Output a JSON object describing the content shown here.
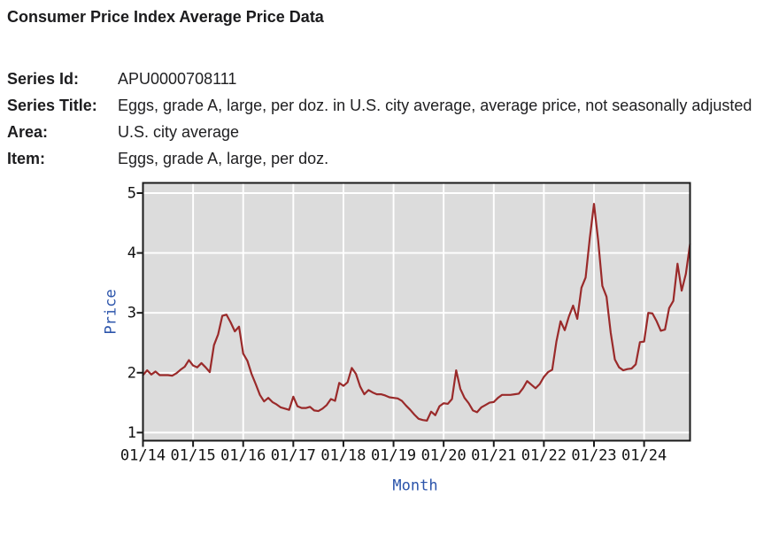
{
  "header": {
    "title": "Consumer Price Index Average Price Data"
  },
  "meta": {
    "rows": [
      {
        "label": "Series Id:",
        "value": "APU0000708111"
      },
      {
        "label": "Series Title:",
        "value": "Eggs, grade A, large, per doz. in U.S. city average, average price, not seasonally adjusted"
      },
      {
        "label": "Area:",
        "value": "U.S. city average"
      },
      {
        "label": "Item:",
        "value": "Eggs, grade A, large, per doz."
      }
    ]
  },
  "chart_data": {
    "type": "line",
    "title": "",
    "xlabel": "Month",
    "ylabel": "Price",
    "x_start": "2014-01",
    "x_freq": "monthly",
    "x_tick_labels": [
      "01/14",
      "01/15",
      "01/16",
      "01/17",
      "01/18",
      "01/19",
      "01/20",
      "01/21",
      "01/22",
      "01/23",
      "01/24"
    ],
    "x_tick_month_indices": [
      0,
      12,
      24,
      36,
      48,
      60,
      72,
      84,
      96,
      108,
      120
    ],
    "y_ticks": [
      1,
      2,
      3,
      4,
      5
    ],
    "ylim": [
      0.865,
      5.17
    ],
    "grid": true,
    "legend": false,
    "plot_bg_color": "#dcdcdc",
    "grid_color": "#ffffff",
    "frame_color": "#1a1a1a",
    "axis_label_color": "#2b54ab",
    "tick_label_color": "#111111",
    "series": [
      {
        "name": "Eggs, grade A, large, per doz. in U.S. city average, average price",
        "color": "#9a2a2a",
        "values": [
          1.96,
          2.04,
          1.97,
          2.02,
          1.96,
          1.96,
          1.96,
          1.95,
          1.99,
          2.05,
          2.1,
          2.21,
          2.12,
          2.09,
          2.16,
          2.09,
          2.01,
          2.46,
          2.64,
          2.95,
          2.97,
          2.84,
          2.69,
          2.77,
          2.32,
          2.2,
          1.98,
          1.81,
          1.63,
          1.52,
          1.58,
          1.51,
          1.47,
          1.42,
          1.4,
          1.38,
          1.6,
          1.44,
          1.41,
          1.41,
          1.43,
          1.37,
          1.36,
          1.4,
          1.46,
          1.56,
          1.53,
          1.83,
          1.78,
          1.84,
          2.08,
          1.98,
          1.77,
          1.64,
          1.71,
          1.67,
          1.64,
          1.64,
          1.62,
          1.59,
          1.58,
          1.57,
          1.53,
          1.45,
          1.38,
          1.3,
          1.23,
          1.21,
          1.2,
          1.35,
          1.29,
          1.44,
          1.49,
          1.48,
          1.56,
          2.04,
          1.73,
          1.58,
          1.49,
          1.37,
          1.34,
          1.42,
          1.46,
          1.5,
          1.51,
          1.58,
          1.63,
          1.63,
          1.63,
          1.64,
          1.65,
          1.74,
          1.86,
          1.8,
          1.74,
          1.81,
          1.93,
          2.01,
          2.05,
          2.52,
          2.86,
          2.71,
          2.94,
          3.12,
          2.9,
          3.42,
          3.59,
          4.25,
          4.82,
          4.21,
          3.45,
          3.27,
          2.67,
          2.22,
          2.09,
          2.04,
          2.06,
          2.07,
          2.14,
          2.51,
          2.52,
          3.0,
          2.99,
          2.86,
          2.7,
          2.72,
          3.08,
          3.2,
          3.82,
          3.37,
          3.65,
          4.15
        ]
      }
    ]
  }
}
